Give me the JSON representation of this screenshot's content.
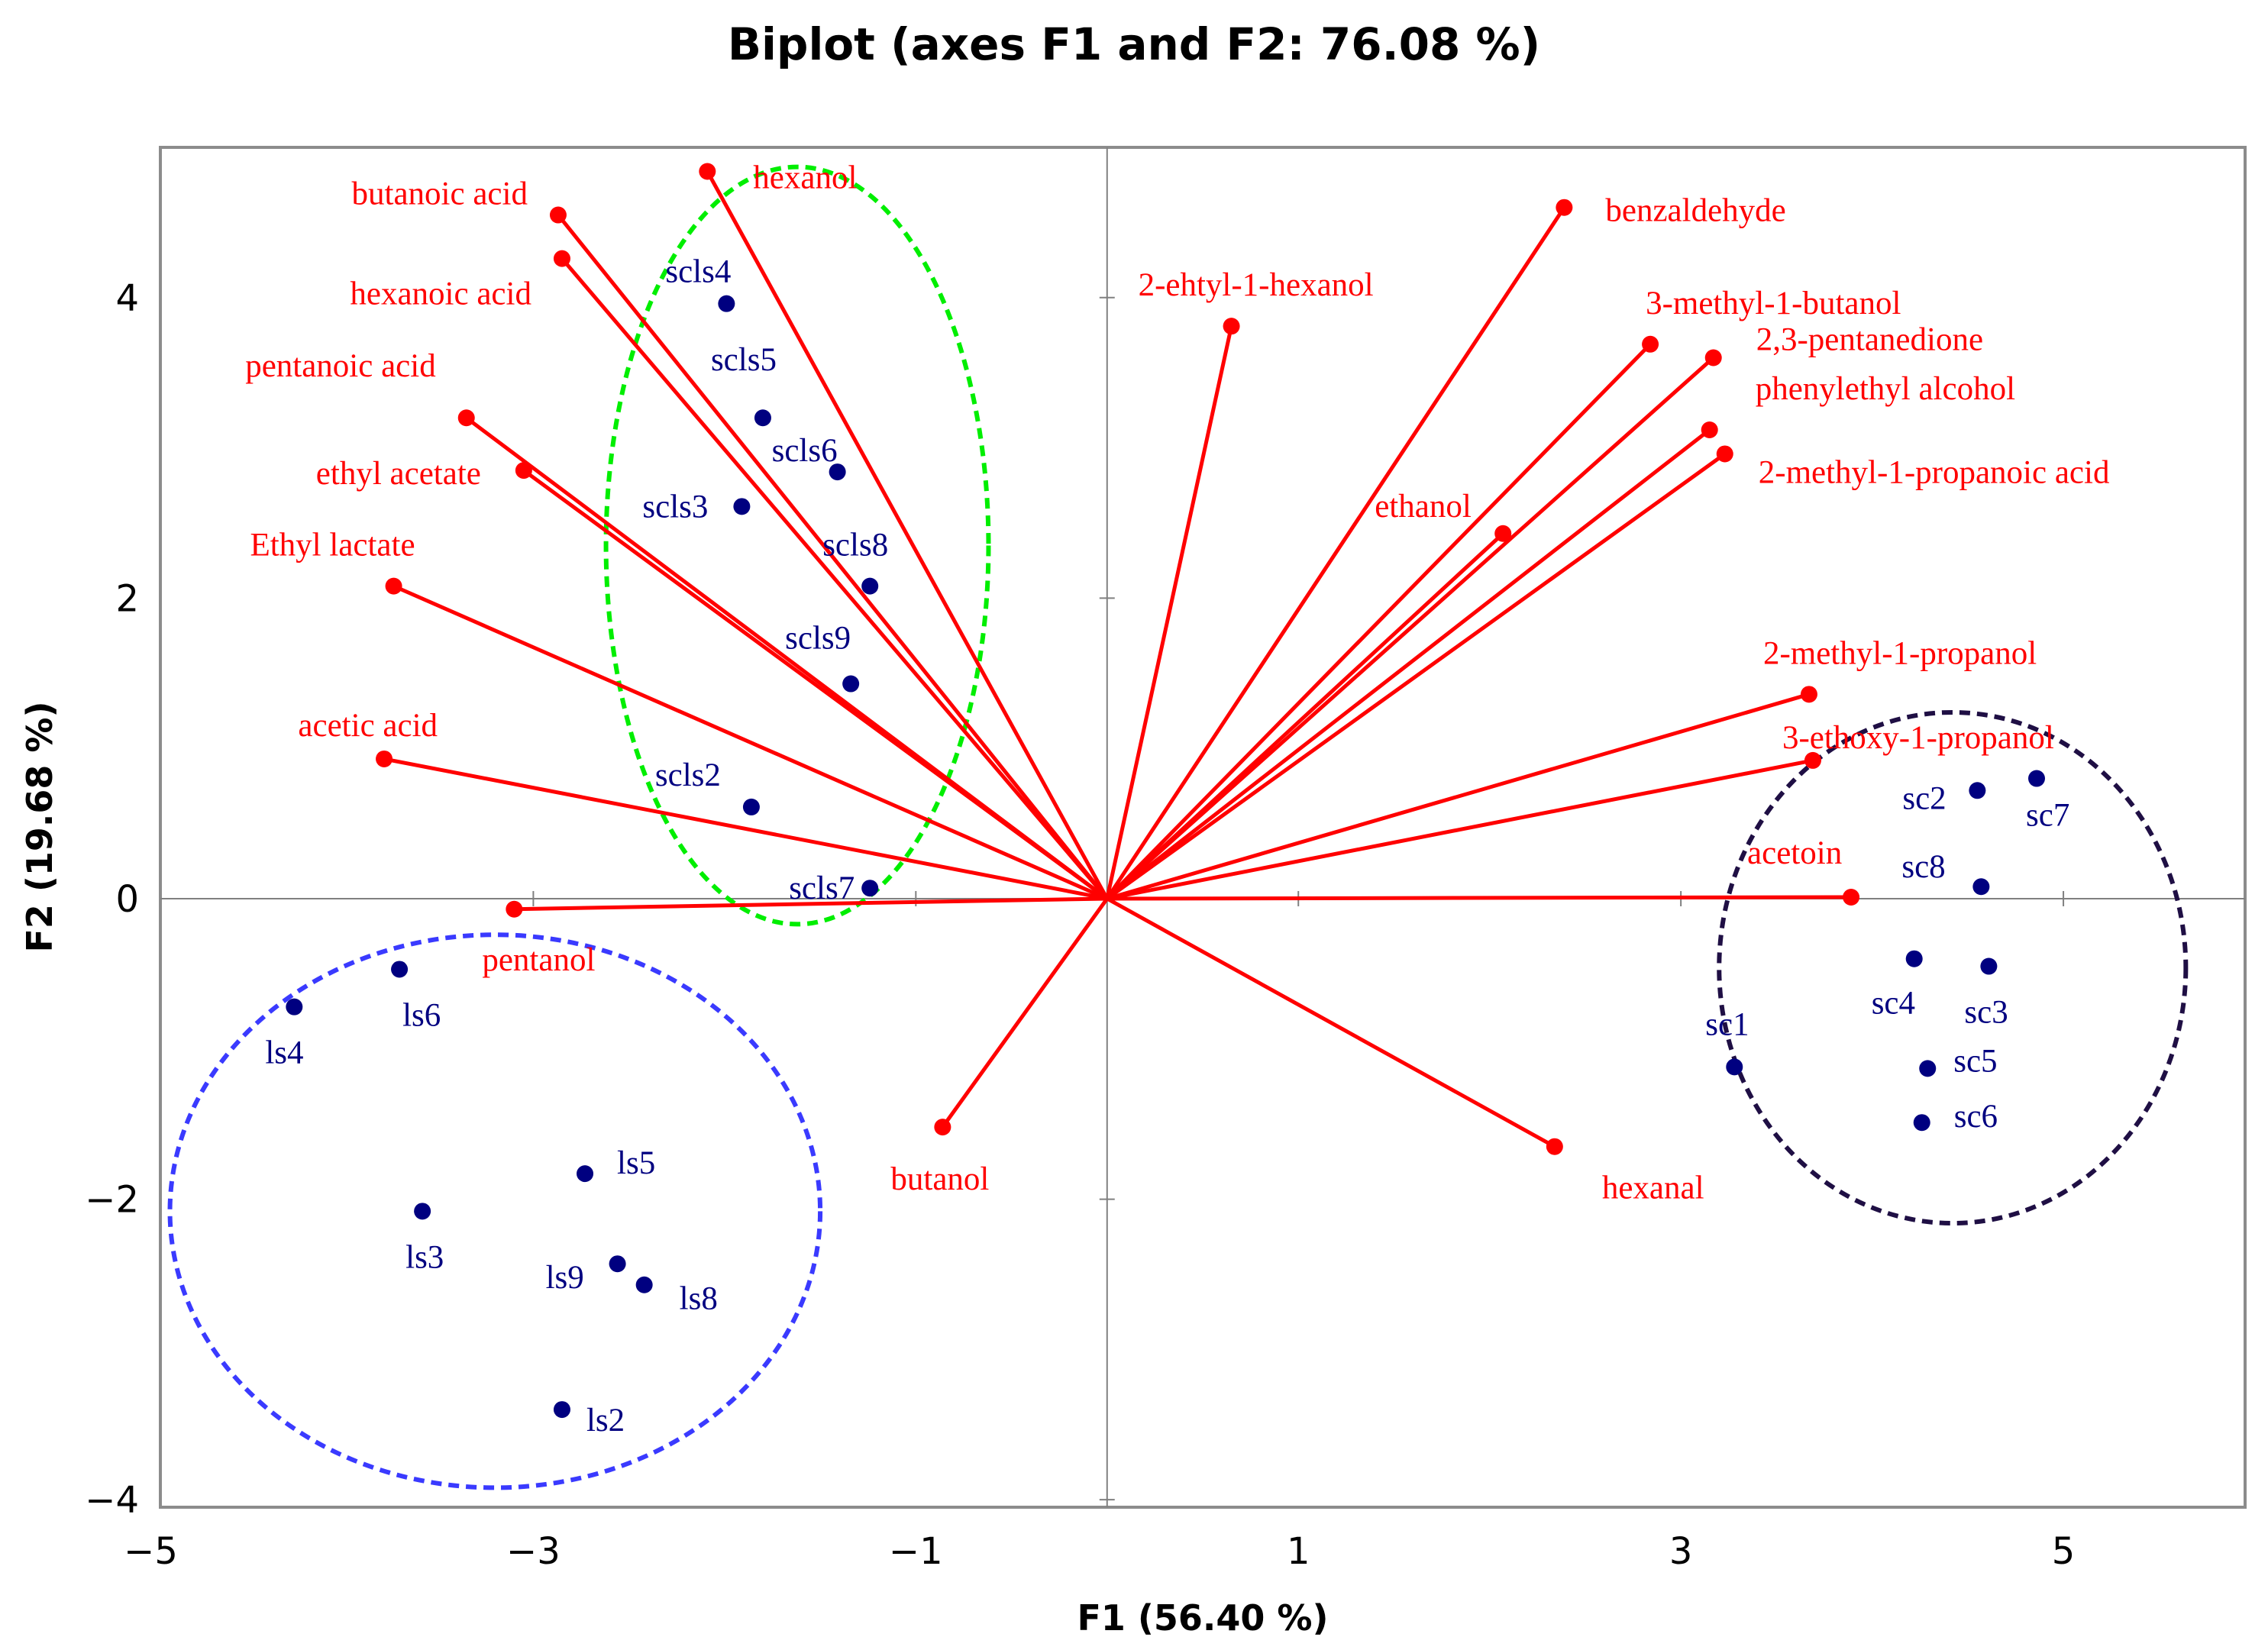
{
  "chart_data": {
    "type": "scatter",
    "subtype": "pca-biplot",
    "title": "Biplot (axes F1 and F2: 76.08 %)",
    "xlabel": "F1 (56.40 %)",
    "ylabel": "F2 (19.68 %)",
    "xlim": [
      -4.95,
      5.95
    ],
    "ylim": [
      -4.05,
      5.0
    ],
    "x_ticks": [
      -5,
      -3,
      -1,
      1,
      3,
      5
    ],
    "x_tick_labels": [
      "−5",
      "−3",
      "−1",
      "1",
      "3",
      "5"
    ],
    "y_ticks": [
      -4,
      -2,
      0,
      2,
      4
    ],
    "y_tick_labels": [
      "−4",
      "−2",
      "0",
      "2",
      "4"
    ],
    "grid": false,
    "colors": {
      "variables": "#ff0000",
      "observations": "#000080",
      "axes": "#808080",
      "cluster_scls": "#00ee00",
      "cluster_ls": "#3a3aff",
      "cluster_sc": "#1f0f44"
    },
    "variables": [
      {
        "name": "hexanol",
        "x": -2.09,
        "y": 4.84
      },
      {
        "name": "butanoic acid",
        "x": -2.87,
        "y": 4.55
      },
      {
        "name": "hexanoic acid",
        "x": -2.85,
        "y": 4.26
      },
      {
        "name": "pentanoic acid",
        "x": -3.35,
        "y": 3.2
      },
      {
        "name": "ethyl acetate",
        "x": -3.05,
        "y": 2.85
      },
      {
        "name": "Ethyl lactate",
        "x": -3.73,
        "y": 2.08
      },
      {
        "name": "acetic acid",
        "x": -3.78,
        "y": 0.93
      },
      {
        "name": "pentanol",
        "x": -3.1,
        "y": -0.07
      },
      {
        "name": "butanol",
        "x": -0.86,
        "y": -1.52
      },
      {
        "name": "2-ehtyl-1-hexanol",
        "x": 0.65,
        "y": 3.81
      },
      {
        "name": "benzaldehyde",
        "x": 2.39,
        "y": 4.6
      },
      {
        "name": "3-methyl-1-butanol",
        "x": 2.84,
        "y": 3.69
      },
      {
        "name": "2,3-pentanedione",
        "x": 3.17,
        "y": 3.6
      },
      {
        "name": "phenylethyl alcohol",
        "x": 3.15,
        "y": 3.12
      },
      {
        "name": "2-methyl-1-propanoic acid",
        "x": 3.23,
        "y": 2.96
      },
      {
        "name": "ethanol",
        "x": 2.07,
        "y": 2.43
      },
      {
        "name": "2-methyl-1-propanol",
        "x": 3.67,
        "y": 1.36
      },
      {
        "name": "3-ethoxy-1-propanol",
        "x": 3.69,
        "y": 0.92
      },
      {
        "name": "acetoin",
        "x": 3.89,
        "y": 0.01
      },
      {
        "name": "hexanal",
        "x": 2.34,
        "y": -1.65
      }
    ],
    "observations": [
      {
        "name": "scls4",
        "group": "scls",
        "x": -1.99,
        "y": 3.96
      },
      {
        "name": "scls5",
        "group": "scls",
        "x": -1.8,
        "y": 3.2
      },
      {
        "name": "scls6",
        "group": "scls",
        "x": -1.41,
        "y": 2.84
      },
      {
        "name": "scls3",
        "group": "scls",
        "x": -1.91,
        "y": 2.61
      },
      {
        "name": "scls8",
        "group": "scls",
        "x": -1.24,
        "y": 2.08
      },
      {
        "name": "scls9",
        "group": "scls",
        "x": -1.34,
        "y": 1.43
      },
      {
        "name": "scls2",
        "group": "scls",
        "x": -1.86,
        "y": 0.61
      },
      {
        "name": "scls7",
        "group": "scls",
        "x": -1.24,
        "y": 0.07
      },
      {
        "name": "ls4",
        "group": "ls",
        "x": -4.25,
        "y": -0.72
      },
      {
        "name": "ls6",
        "group": "ls",
        "x": -3.7,
        "y": -0.47
      },
      {
        "name": "ls5",
        "group": "ls",
        "x": -2.73,
        "y": -1.83
      },
      {
        "name": "ls3",
        "group": "ls",
        "x": -3.58,
        "y": -2.08
      },
      {
        "name": "ls9",
        "group": "ls",
        "x": -2.56,
        "y": -2.43
      },
      {
        "name": "ls8",
        "group": "ls",
        "x": -2.42,
        "y": -2.57
      },
      {
        "name": "ls2",
        "group": "ls",
        "x": -2.85,
        "y": -3.4
      },
      {
        "name": "sc2",
        "group": "sc",
        "x": 4.55,
        "y": 0.72
      },
      {
        "name": "sc7",
        "group": "sc",
        "x": 4.86,
        "y": 0.8
      },
      {
        "name": "sc8",
        "group": "sc",
        "x": 4.57,
        "y": 0.08
      },
      {
        "name": "sc4",
        "group": "sc",
        "x": 4.22,
        "y": -0.4
      },
      {
        "name": "sc3",
        "group": "sc",
        "x": 4.61,
        "y": -0.45
      },
      {
        "name": "sc1",
        "group": "sc",
        "x": 3.28,
        "y": -1.12
      },
      {
        "name": "sc5",
        "group": "sc",
        "x": 4.29,
        "y": -1.13
      },
      {
        "name": "sc6",
        "group": "sc",
        "x": 4.26,
        "y": -1.49
      }
    ],
    "clusters": [
      {
        "name": "scls",
        "cx": -1.62,
        "cy": 2.35,
        "rx": 1.0,
        "ry": 2.52,
        "color_key": "cluster_scls"
      },
      {
        "name": "ls",
        "cx": -3.2,
        "cy": -2.08,
        "rx": 1.7,
        "ry": 1.84,
        "color_key": "cluster_ls"
      },
      {
        "name": "sc",
        "cx": 4.42,
        "cy": -0.46,
        "rx": 1.22,
        "ry": 1.7,
        "color_key": "cluster_sc"
      }
    ]
  }
}
